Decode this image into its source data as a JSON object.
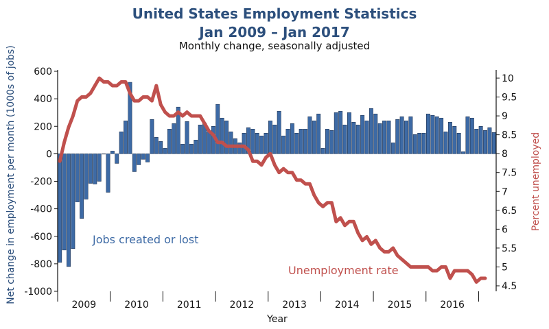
{
  "chart_data": {
    "type": "bar",
    "title": "United States Employment Statistics",
    "subtitle_line": "Jan 2009 – Jan 2017",
    "subtitle": "Monthly change, seasonally adjusted",
    "xlabel": "Year",
    "ylabel_left": "Net change in employment per month (1000s of jobs)",
    "ylabel_right": "Percent unemployed",
    "years": [
      "2009",
      "2010",
      "2011",
      "2012",
      "2013",
      "2014",
      "2015",
      "2016"
    ],
    "y_left_ticks": [
      "600",
      "400",
      "200",
      "0",
      "-200",
      "-400",
      "-600",
      "-800",
      "-1000"
    ],
    "y_right_ticks": [
      "10",
      "9.5",
      "9",
      "8.5",
      "8",
      "7.5",
      "7",
      "6.5",
      "6",
      "5.5",
      "5",
      "4.5"
    ],
    "ylim_left": [
      -1000,
      600
    ],
    "ylim_right": [
      4.4,
      10.2
    ],
    "annotations": [
      "Jobs created or lost",
      "Unemployment rate"
    ],
    "colors": {
      "bars": "#3d6aa5",
      "bar_edge": "#1a2a44",
      "unemployment": "#c0504d",
      "title": "#2c4f7c"
    },
    "series": [
      {
        "name": "Jobs created or lost",
        "type": "bar",
        "values": [
          -790,
          -700,
          -820,
          -690,
          -350,
          -470,
          -330,
          -215,
          -220,
          -200,
          0,
          -280,
          20,
          -70,
          160,
          240,
          520,
          -130,
          -80,
          -40,
          -60,
          250,
          120,
          90,
          40,
          180,
          220,
          340,
          70,
          235,
          70,
          100,
          210,
          225,
          160,
          200,
          360,
          260,
          240,
          160,
          110,
          80,
          150,
          190,
          180,
          150,
          130,
          150,
          240,
          210,
          310,
          130,
          180,
          220,
          150,
          180,
          180,
          270,
          240,
          290,
          40,
          180,
          170,
          300,
          310,
          210,
          300,
          230,
          210,
          280,
          240,
          330,
          290,
          220,
          240,
          240,
          80,
          250,
          270,
          240,
          270,
          140,
          150,
          150,
          290,
          280,
          270,
          260,
          160,
          230,
          200,
          150,
          15,
          270,
          260,
          180,
          200,
          170,
          190,
          155
        ]
      },
      {
        "name": "Unemployment rate",
        "type": "line",
        "values": [
          7.8,
          8.3,
          8.7,
          9.0,
          9.4,
          9.5,
          9.5,
          9.6,
          9.8,
          10.0,
          9.9,
          9.9,
          9.8,
          9.8,
          9.9,
          9.9,
          9.6,
          9.4,
          9.4,
          9.5,
          9.5,
          9.4,
          9.8,
          9.3,
          9.1,
          9.0,
          9.0,
          9.1,
          9.0,
          9.1,
          9.0,
          9.0,
          9.0,
          8.8,
          8.6,
          8.5,
          8.3,
          8.3,
          8.2,
          8.2,
          8.2,
          8.2,
          8.2,
          8.1,
          7.8,
          7.8,
          7.7,
          7.9,
          8.0,
          7.7,
          7.5,
          7.6,
          7.5,
          7.5,
          7.3,
          7.3,
          7.2,
          7.2,
          6.9,
          6.7,
          6.6,
          6.7,
          6.7,
          6.2,
          6.3,
          6.1,
          6.2,
          6.2,
          5.9,
          5.7,
          5.8,
          5.6,
          5.7,
          5.5,
          5.4,
          5.4,
          5.5,
          5.3,
          5.2,
          5.1,
          5.0,
          5.0,
          5.0,
          5.0,
          5.0,
          4.9,
          4.9,
          5.0,
          5.0,
          4.7,
          4.9,
          4.9,
          4.9,
          4.9,
          4.8,
          4.6,
          4.7,
          4.7
        ]
      }
    ]
  }
}
